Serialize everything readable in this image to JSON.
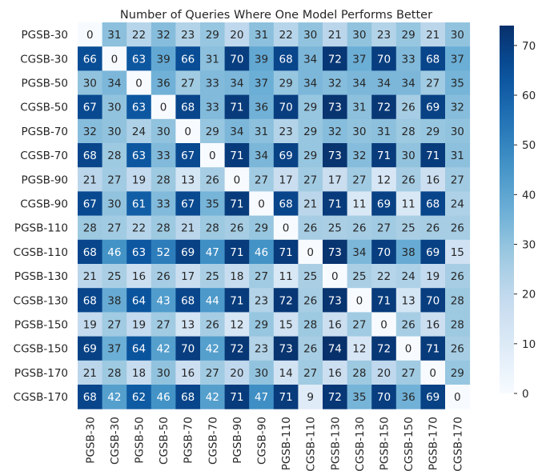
{
  "chart_data": {
    "type": "heatmap",
    "title": "Number of Queries Where One Model Performs Better",
    "xlabel": "",
    "ylabel": "",
    "rows": [
      "PGSB-30",
      "CGSB-30",
      "PGSB-50",
      "CGSB-50",
      "PGSB-70",
      "CGSB-70",
      "PGSB-90",
      "CGSB-90",
      "PGSB-110",
      "CGSB-110",
      "PGSB-130",
      "CGSB-130",
      "PGSB-150",
      "CGSB-150",
      "PGSB-170",
      "CGSB-170"
    ],
    "columns": [
      "PGSB-30",
      "CGSB-30",
      "PGSB-50",
      "CGSB-50",
      "PGSB-70",
      "CGSB-70",
      "PGSB-90",
      "CGSB-90",
      "PGSB-110",
      "CGSB-110",
      "PGSB-130",
      "CGSB-130",
      "PGSB-150",
      "CGSB-150",
      "PGSB-170",
      "CGSB-170"
    ],
    "values": [
      [
        0,
        31,
        22,
        32,
        23,
        29,
        20,
        31,
        22,
        30,
        21,
        30,
        23,
        29,
        21,
        30
      ],
      [
        66,
        0,
        63,
        39,
        66,
        31,
        70,
        39,
        68,
        34,
        72,
        37,
        70,
        33,
        68,
        37
      ],
      [
        30,
        34,
        0,
        36,
        27,
        33,
        34,
        37,
        29,
        34,
        32,
        34,
        34,
        34,
        27,
        35
      ],
      [
        67,
        30,
        63,
        0,
        68,
        33,
        71,
        36,
        70,
        29,
        73,
        31,
        72,
        26,
        69,
        32
      ],
      [
        32,
        30,
        24,
        30,
        0,
        29,
        34,
        31,
        23,
        29,
        32,
        30,
        31,
        28,
        29,
        30
      ],
      [
        68,
        28,
        63,
        33,
        67,
        0,
        71,
        34,
        69,
        29,
        73,
        32,
        71,
        30,
        71,
        31
      ],
      [
        21,
        27,
        19,
        28,
        13,
        26,
        0,
        27,
        17,
        27,
        17,
        27,
        12,
        26,
        16,
        27
      ],
      [
        67,
        30,
        61,
        33,
        67,
        35,
        71,
        0,
        68,
        21,
        71,
        11,
        69,
        11,
        68,
        24
      ],
      [
        28,
        27,
        22,
        28,
        21,
        28,
        26,
        29,
        0,
        26,
        25,
        26,
        27,
        25,
        26,
        26
      ],
      [
        68,
        46,
        63,
        52,
        69,
        47,
        71,
        46,
        71,
        0,
        73,
        34,
        70,
        38,
        69,
        15
      ],
      [
        21,
        25,
        16,
        26,
        17,
        25,
        18,
        27,
        11,
        25,
        0,
        25,
        22,
        24,
        19,
        26
      ],
      [
        68,
        38,
        64,
        43,
        68,
        44,
        71,
        23,
        72,
        26,
        73,
        0,
        71,
        13,
        70,
        28
      ],
      [
        19,
        27,
        19,
        27,
        13,
        26,
        12,
        29,
        15,
        28,
        16,
        27,
        0,
        26,
        16,
        28
      ],
      [
        69,
        37,
        64,
        42,
        70,
        42,
        72,
        23,
        73,
        26,
        74,
        12,
        72,
        0,
        71,
        26
      ],
      [
        21,
        28,
        18,
        30,
        16,
        27,
        20,
        30,
        14,
        27,
        16,
        28,
        20,
        27,
        0,
        29
      ],
      [
        68,
        42,
        62,
        46,
        68,
        42,
        71,
        47,
        71,
        9,
        72,
        35,
        70,
        36,
        69,
        0
      ]
    ],
    "colorbar": {
      "min": 0,
      "max": 74,
      "ticks": [
        0,
        10,
        20,
        30,
        40,
        50,
        60,
        70
      ],
      "colormap": "Blues"
    },
    "grid": false
  }
}
